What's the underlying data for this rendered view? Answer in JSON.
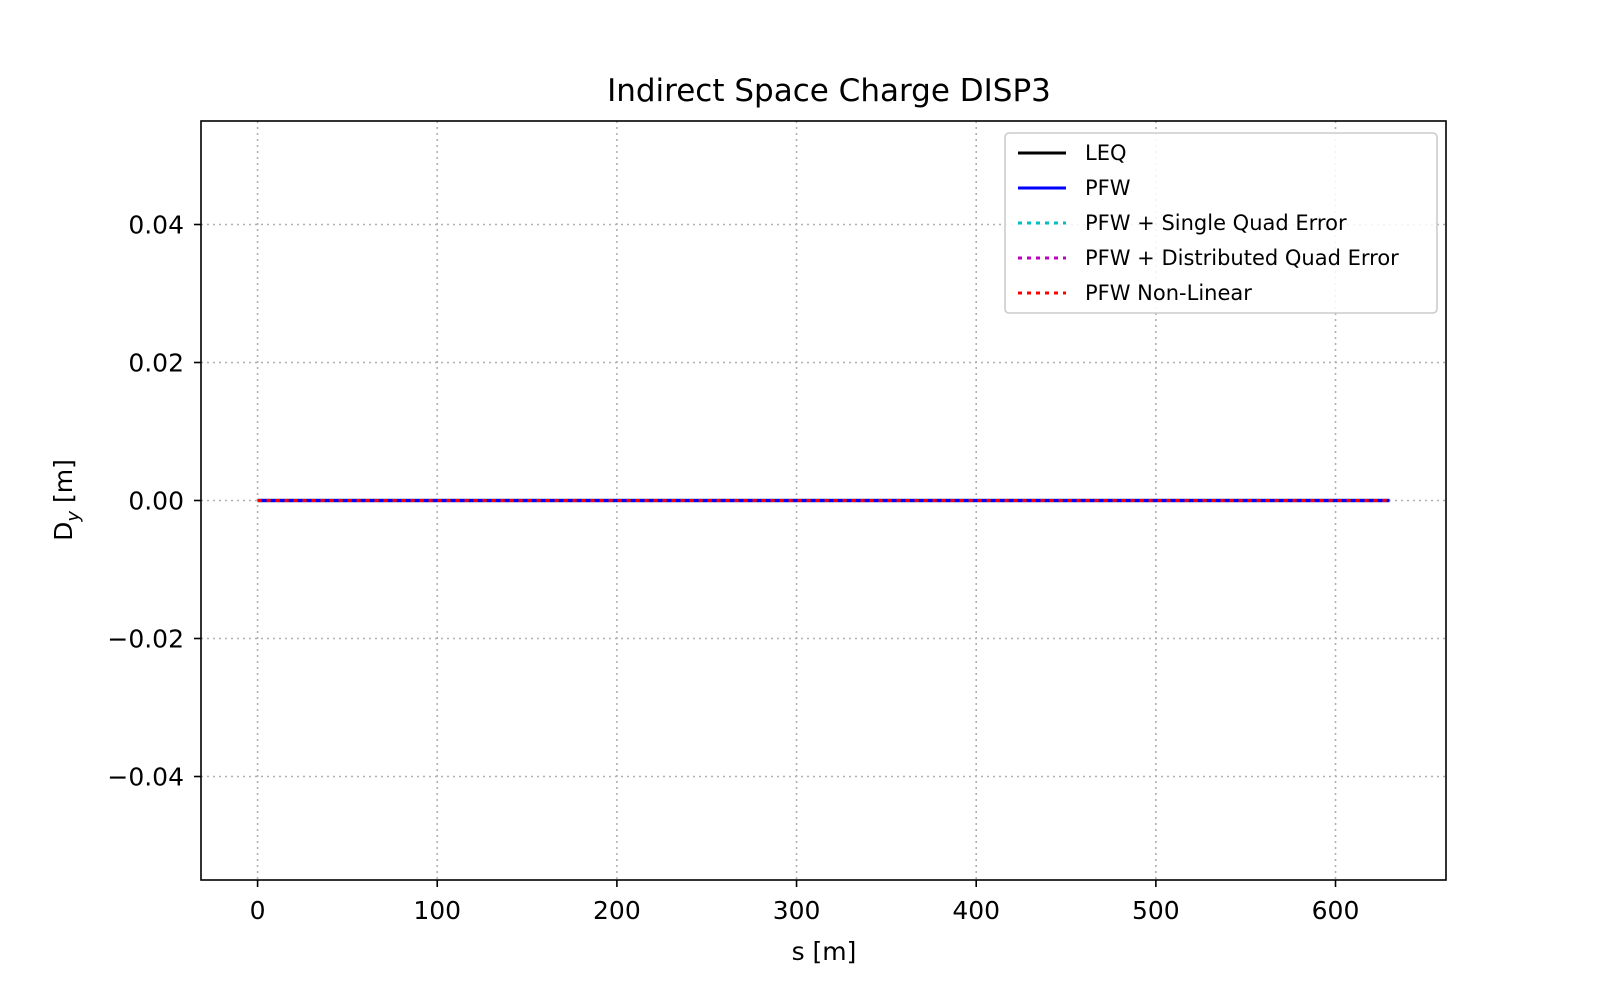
{
  "chart_data": {
    "type": "line",
    "title": "Indirect Space Charge DISP3",
    "xlabel": "s [m]",
    "ylabel_main": "D",
    "ylabel_sub": "y",
    "ylabel_unit": " [m]",
    "xlim": [
      -31.5,
      661.5
    ],
    "ylim": [
      -0.055,
      0.055
    ],
    "xticks": [
      0,
      100,
      200,
      300,
      400,
      500,
      600
    ],
    "xtick_labels": [
      "0",
      "100",
      "200",
      "300",
      "400",
      "500",
      "600"
    ],
    "yticks": [
      -0.04,
      -0.02,
      0.0,
      0.02,
      0.04
    ],
    "ytick_labels": [
      "−0.04",
      "−0.02",
      "0.00",
      "0.02",
      "0.04"
    ],
    "grid": true,
    "legend_position": "top-right",
    "series": [
      {
        "name": "LEQ",
        "color": "#000000",
        "style": "solid",
        "x": [
          0,
          630
        ],
        "y": [
          0.0,
          0.0
        ]
      },
      {
        "name": "PFW",
        "color": "#0000ff",
        "style": "solid",
        "x": [
          0,
          630
        ],
        "y": [
          0.0,
          0.0
        ]
      },
      {
        "name": "PFW + Single Quad Error",
        "color": "#00bfbf",
        "style": "dotted",
        "x": [
          0,
          630
        ],
        "y": [
          0.0,
          0.0
        ]
      },
      {
        "name": "PFW + Distributed Quad Error",
        "color": "#bf00bf",
        "style": "dotted",
        "x": [
          0,
          630
        ],
        "y": [
          0.0,
          0.0
        ]
      },
      {
        "name": "PFW Non-Linear",
        "color": "#ff0000",
        "style": "dotted",
        "x": [
          0,
          630
        ],
        "y": [
          0.0,
          0.0
        ]
      }
    ]
  }
}
